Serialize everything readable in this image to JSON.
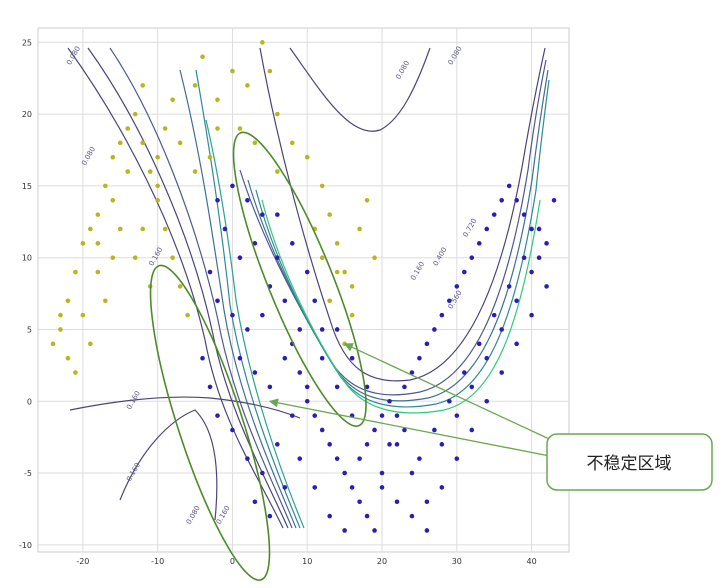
{
  "chart_data": {
    "type": "scatter",
    "title": "",
    "xlabel": "",
    "ylabel": "",
    "xlim": [
      -26,
      45
    ],
    "ylim": [
      -10.5,
      26
    ],
    "x_ticks": [
      -20,
      -10,
      0,
      10,
      20,
      30,
      40
    ],
    "x_tick_labels": [
      "-20",
      "-10",
      "0",
      "10",
      "20",
      "30",
      "40"
    ],
    "y_ticks": [
      -10,
      -5,
      0,
      5,
      10,
      15,
      20,
      25
    ],
    "y_tick_labels": [
      "-10",
      "-5",
      "0",
      "5",
      "10",
      "15",
      "20",
      "25"
    ],
    "grid": true,
    "legend": "none",
    "series": [
      {
        "color": "#b5b81c",
        "points": [
          [
            -24,
            4
          ],
          [
            -23,
            6
          ],
          [
            -22,
            7
          ],
          [
            -21,
            9
          ],
          [
            -20,
            11
          ],
          [
            -19,
            12
          ],
          [
            -18,
            13
          ],
          [
            -17,
            15
          ],
          [
            -16,
            17
          ],
          [
            -15,
            18
          ],
          [
            -14,
            19
          ],
          [
            -13,
            20
          ],
          [
            -12,
            18
          ],
          [
            -11,
            16
          ],
          [
            -10,
            14
          ],
          [
            -9,
            12
          ],
          [
            -8,
            10
          ],
          [
            -7,
            8
          ],
          [
            -6,
            6
          ],
          [
            -15,
            12
          ],
          [
            -18,
            9
          ],
          [
            -20,
            6
          ],
          [
            -22,
            3
          ],
          [
            -21,
            2
          ],
          [
            -19,
            4
          ],
          [
            -17,
            7
          ],
          [
            -13,
            10
          ],
          [
            -11,
            8
          ],
          [
            -12,
            12
          ],
          [
            -16,
            14
          ],
          [
            -14,
            16
          ],
          [
            -10,
            17
          ],
          [
            -9,
            19
          ],
          [
            -12,
            22
          ],
          [
            -8,
            21
          ],
          [
            -7,
            18
          ],
          [
            -5,
            22
          ],
          [
            -4,
            24
          ],
          [
            -2,
            21
          ],
          [
            0,
            23
          ],
          [
            2,
            22
          ],
          [
            4,
            25
          ],
          [
            5,
            23
          ],
          [
            6,
            20
          ],
          [
            8,
            18
          ],
          [
            10,
            17
          ],
          [
            12,
            15
          ],
          [
            13,
            13
          ],
          [
            14,
            11
          ],
          [
            15,
            9
          ],
          [
            16,
            8
          ],
          [
            17,
            12
          ],
          [
            18,
            14
          ],
          [
            19,
            10
          ],
          [
            16,
            6
          ],
          [
            15,
            4
          ],
          [
            -2,
            19
          ],
          [
            -3,
            17
          ],
          [
            -5,
            16
          ],
          [
            1,
            19
          ],
          [
            3,
            18
          ],
          [
            6,
            16
          ],
          [
            11,
            12
          ],
          [
            13,
            7
          ],
          [
            14,
            9
          ],
          [
            12,
            10
          ],
          [
            -23,
            5
          ],
          [
            -18,
            11
          ],
          [
            -16,
            10
          ],
          [
            -10,
            15
          ]
        ]
      },
      {
        "color": "#2b1fb3",
        "points": [
          [
            -2,
            14
          ],
          [
            0,
            15
          ],
          [
            2,
            14
          ],
          [
            4,
            13
          ],
          [
            3,
            11
          ],
          [
            1,
            10
          ],
          [
            -1,
            12
          ],
          [
            -3,
            9
          ],
          [
            -2,
            7
          ],
          [
            0,
            6
          ],
          [
            2,
            5
          ],
          [
            4,
            6
          ],
          [
            5,
            8
          ],
          [
            6,
            10
          ],
          [
            7,
            7
          ],
          [
            8,
            4
          ],
          [
            9,
            2
          ],
          [
            10,
            0
          ],
          [
            11,
            -1
          ],
          [
            12,
            -2
          ],
          [
            13,
            -3
          ],
          [
            14,
            -4
          ],
          [
            15,
            -5
          ],
          [
            16,
            -6
          ],
          [
            17,
            -7
          ],
          [
            18,
            -8
          ],
          [
            19,
            -9
          ],
          [
            20,
            -5
          ],
          [
            21,
            -3
          ],
          [
            22,
            -1
          ],
          [
            23,
            1
          ],
          [
            24,
            2
          ],
          [
            25,
            3
          ],
          [
            26,
            4
          ],
          [
            27,
            5
          ],
          [
            28,
            6
          ],
          [
            29,
            7
          ],
          [
            30,
            8
          ],
          [
            31,
            9
          ],
          [
            32,
            10
          ],
          [
            33,
            11
          ],
          [
            34,
            12
          ],
          [
            35,
            13
          ],
          [
            36,
            14
          ],
          [
            37,
            15
          ],
          [
            38,
            14
          ],
          [
            39,
            13
          ],
          [
            40,
            12
          ],
          [
            41,
            10
          ],
          [
            42,
            8
          ],
          [
            40,
            6
          ],
          [
            38,
            4
          ],
          [
            36,
            2
          ],
          [
            34,
            0
          ],
          [
            32,
            -2
          ],
          [
            30,
            -4
          ],
          [
            28,
            -6
          ],
          [
            26,
            -7
          ],
          [
            24,
            -5
          ],
          [
            22,
            -3
          ],
          [
            20,
            -1
          ],
          [
            18,
            1
          ],
          [
            16,
            3
          ],
          [
            14,
            5
          ],
          [
            12,
            3
          ],
          [
            10,
            1
          ],
          [
            8,
            -1
          ],
          [
            6,
            -3
          ],
          [
            4,
            -5
          ],
          [
            3,
            -7
          ],
          [
            5,
            -8
          ],
          [
            7,
            -6
          ],
          [
            9,
            -4
          ],
          [
            11,
            -6
          ],
          [
            13,
            -8
          ],
          [
            15,
            -9
          ],
          [
            17,
            -4
          ],
          [
            19,
            -2
          ],
          [
            21,
            0
          ],
          [
            23,
            -2
          ],
          [
            25,
            -4
          ],
          [
            27,
            -2
          ],
          [
            29,
            0
          ],
          [
            31,
            2
          ],
          [
            33,
            4
          ],
          [
            35,
            6
          ],
          [
            37,
            8
          ],
          [
            39,
            10
          ],
          [
            41,
            12
          ],
          [
            43,
            14
          ],
          [
            -4,
            3
          ],
          [
            -3,
            1
          ],
          [
            -2,
            -1
          ],
          [
            0,
            -2
          ],
          [
            2,
            -4
          ],
          [
            1,
            3
          ],
          [
            3,
            2
          ],
          [
            5,
            1
          ],
          [
            7,
            3
          ],
          [
            9,
            5
          ],
          [
            11,
            7
          ],
          [
            6,
            13
          ],
          [
            8,
            11
          ],
          [
            10,
            9
          ],
          [
            12,
            5
          ],
          [
            14,
            1
          ],
          [
            16,
            -1
          ],
          [
            18,
            -3
          ],
          [
            20,
            -6
          ],
          [
            22,
            -7
          ],
          [
            24,
            -8
          ],
          [
            26,
            -9
          ],
          [
            28,
            -3
          ],
          [
            30,
            -1
          ],
          [
            32,
            1
          ],
          [
            34,
            3
          ],
          [
            36,
            5
          ],
          [
            38,
            7
          ],
          [
            40,
            9
          ],
          [
            42,
            11
          ]
        ]
      }
    ],
    "contour_labels": [
      {
        "text": "0.080",
        "x": -21,
        "y": 24
      },
      {
        "text": "0.080",
        "x": -19,
        "y": 17
      },
      {
        "text": "0.160",
        "x": -10,
        "y": 10
      },
      {
        "text": "0.160",
        "x": -13,
        "y": 0
      },
      {
        "text": "0.160",
        "x": -13,
        "y": -5
      },
      {
        "text": "0.080",
        "x": -5,
        "y": -8
      },
      {
        "text": "0.160",
        "x": -1,
        "y": -8
      },
      {
        "text": "0.080",
        "x": 23,
        "y": 23
      },
      {
        "text": "0.080",
        "x": 30,
        "y": 24
      },
      {
        "text": "0.160",
        "x": 25,
        "y": 9
      },
      {
        "text": "0.400",
        "x": 28,
        "y": 10
      },
      {
        "text": "0.720",
        "x": 32,
        "y": 12
      },
      {
        "text": "0.560",
        "x": 30,
        "y": 7
      }
    ],
    "annotation": {
      "text": "不稳定区域",
      "arrow_targets": [
        [
          5,
          0
        ],
        [
          15,
          4
        ]
      ],
      "unstable_regions": [
        {
          "center": [
            -3,
            -1.5
          ],
          "semi_x": 4.3,
          "semi_y": 11.5,
          "angle_deg": 18
        },
        {
          "center": [
            9,
            8.5
          ],
          "semi_x": 4.3,
          "semi_y": 11.0,
          "angle_deg": 22
        }
      ]
    },
    "colors": {
      "class_a": "#b5b81c",
      "class_b": "#2b1fb3",
      "contour_low": "#4b4577",
      "contour_high": "#34c978",
      "ellipse": "#4f8a2a",
      "callout_border": "#6aa84f"
    }
  }
}
